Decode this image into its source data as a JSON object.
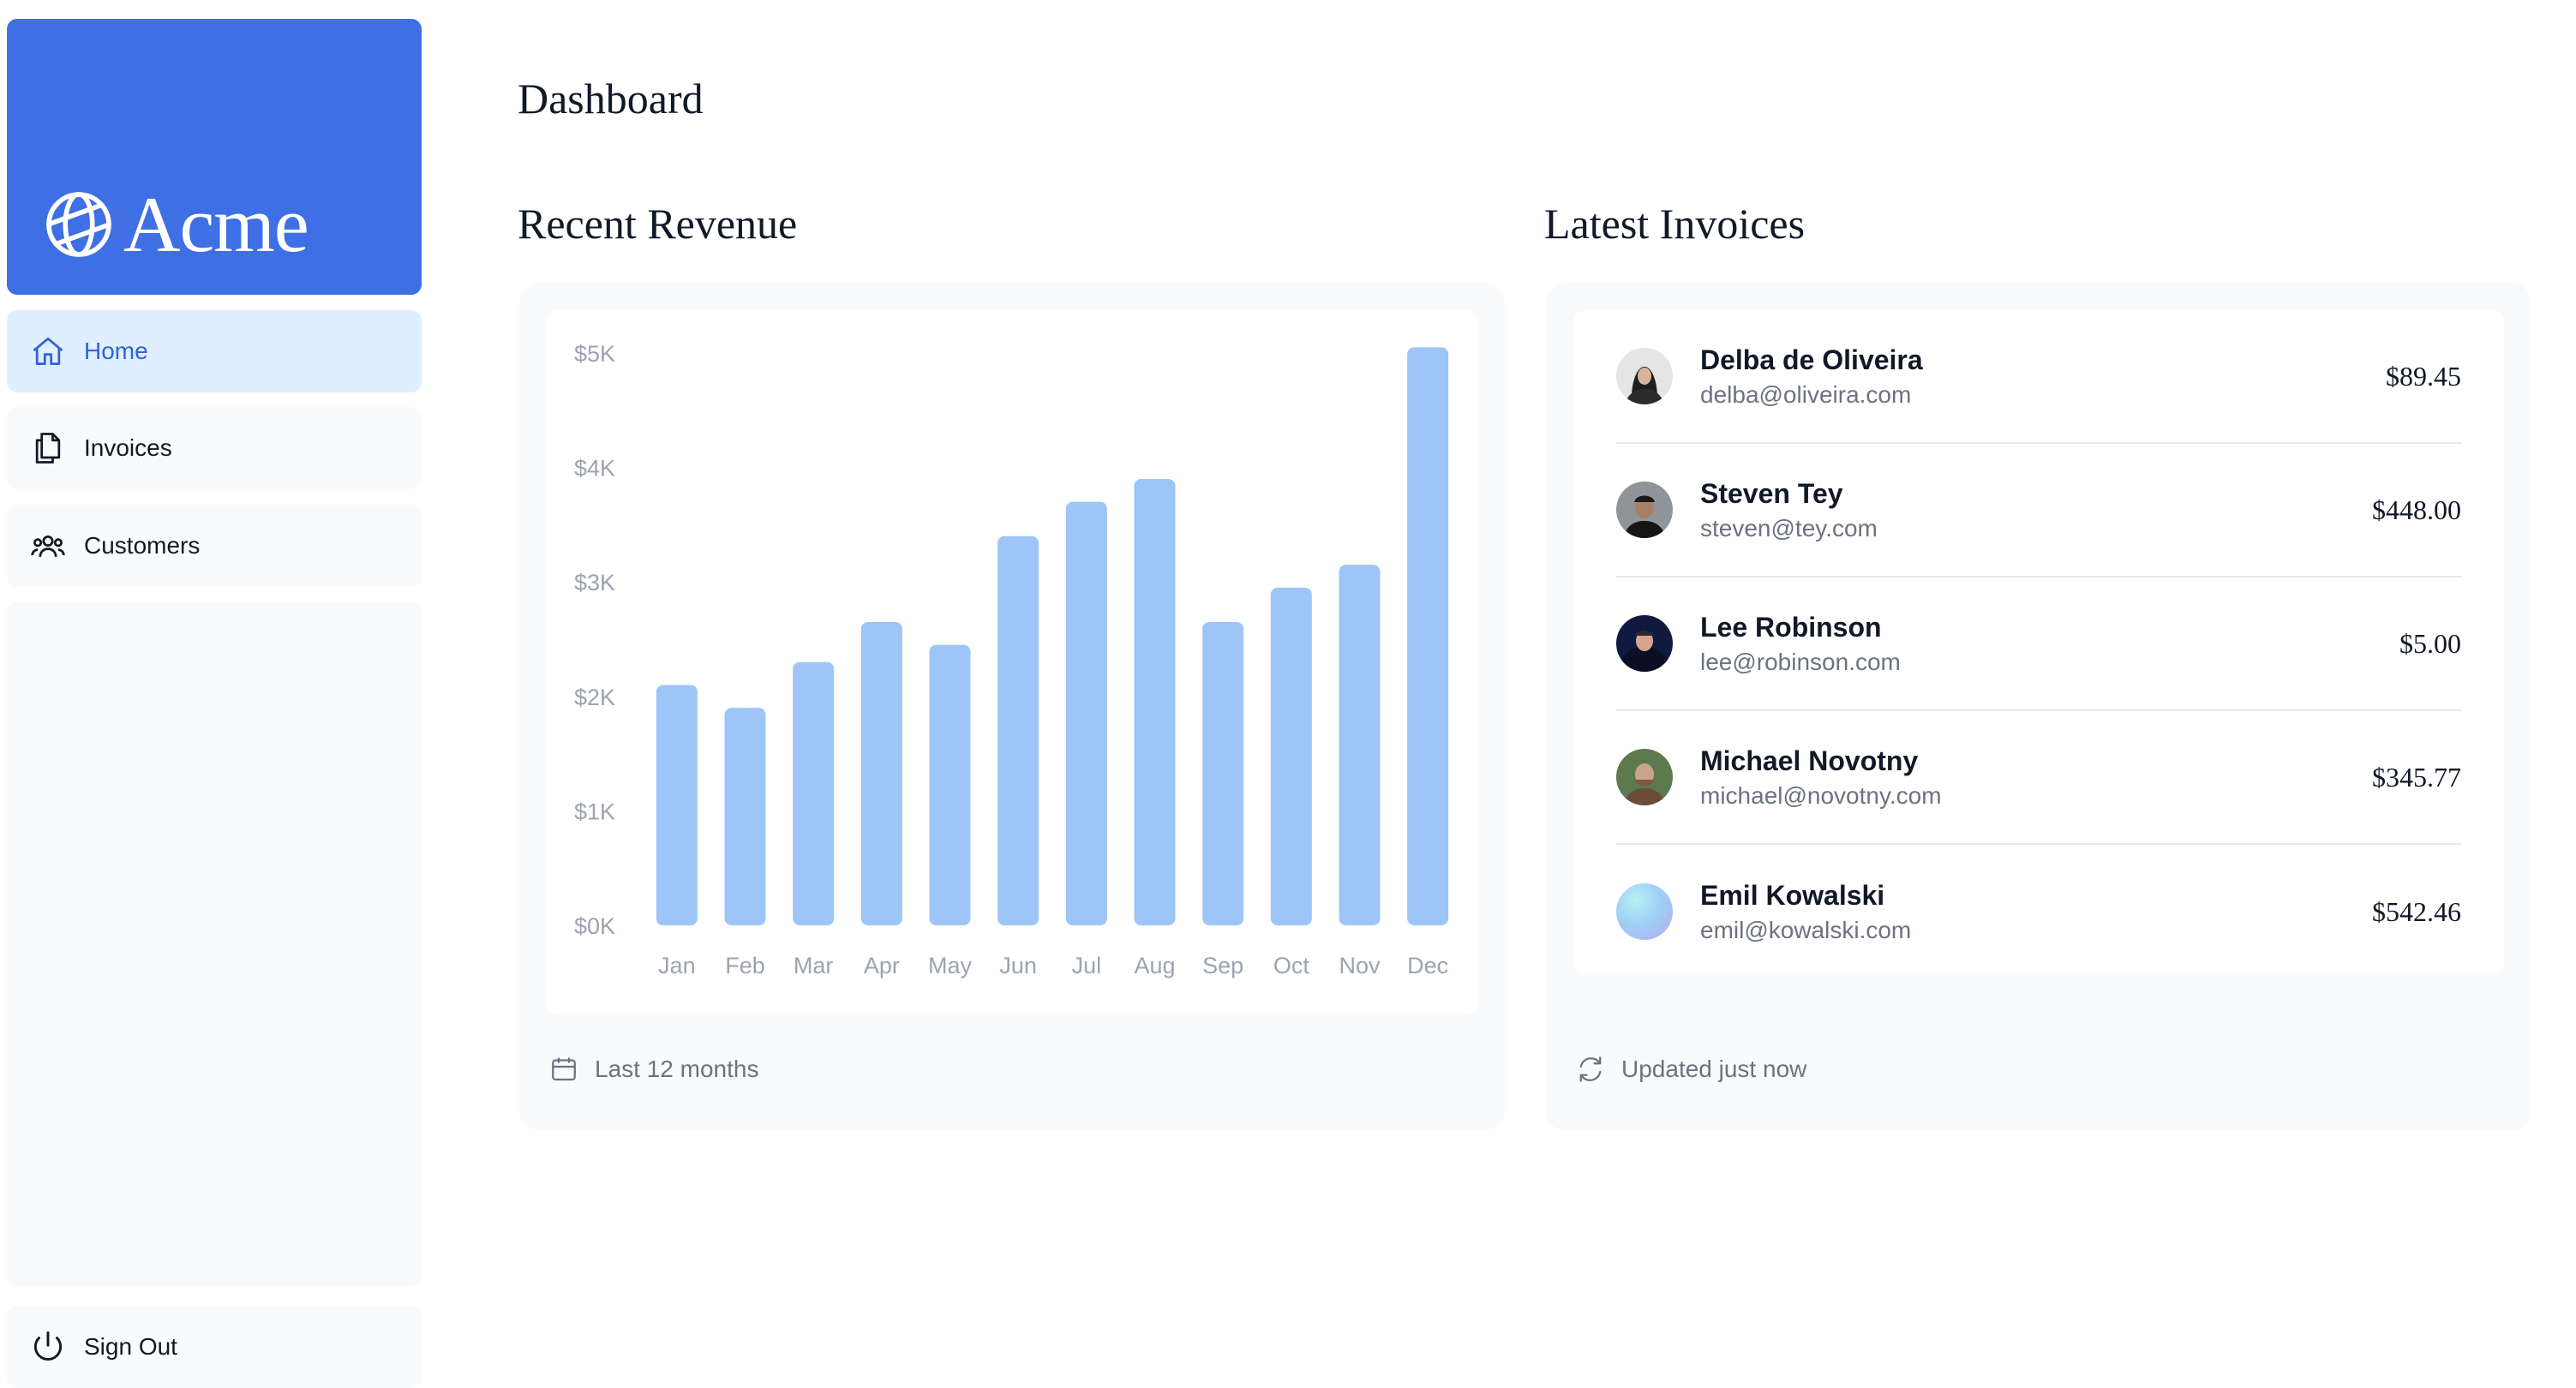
{
  "brand": {
    "name": "Acme",
    "icon": "globe-icon",
    "color": "#3f6fe4"
  },
  "sidebar": {
    "items": [
      {
        "label": "Home",
        "icon": "home-icon",
        "active": true
      },
      {
        "label": "Invoices",
        "icon": "document-duplicate-icon"
      },
      {
        "label": "Customers",
        "icon": "user-group-icon"
      }
    ],
    "sign_out": {
      "label": "Sign Out",
      "icon": "power-icon"
    }
  },
  "main": {
    "title": "Dashboard",
    "revenue": {
      "title": "Recent Revenue",
      "footer": "Last 12 months",
      "footer_icon": "calendar-icon"
    },
    "invoices": {
      "title": "Latest Invoices",
      "footer": "Updated just now",
      "footer_icon": "refresh-icon",
      "rows": [
        {
          "name": "Delba de Oliveira",
          "email": "delba@oliveira.com",
          "amount": "$89.45"
        },
        {
          "name": "Steven Tey",
          "email": "steven@tey.com",
          "amount": "$448.00"
        },
        {
          "name": "Lee Robinson",
          "email": "lee@robinson.com",
          "amount": "$5.00"
        },
        {
          "name": "Michael Novotny",
          "email": "michael@novotny.com",
          "amount": "$345.77"
        },
        {
          "name": "Emil Kowalski",
          "email": "emil@kowalski.com",
          "amount": "$542.46"
        }
      ]
    }
  },
  "chart_data": {
    "type": "bar",
    "categories": [
      "Jan",
      "Feb",
      "Mar",
      "Apr",
      "May",
      "Jun",
      "Jul",
      "Aug",
      "Sep",
      "Oct",
      "Nov",
      "Dec"
    ],
    "values": [
      2100,
      1900,
      2300,
      2650,
      2450,
      3400,
      3700,
      3900,
      2650,
      2950,
      3150,
      5050
    ],
    "yticks": [
      "$0K",
      "$1K",
      "$2K",
      "$3K",
      "$4K",
      "$5K"
    ],
    "ylim": [
      0,
      5000
    ],
    "bar_color": "#9ec5f8",
    "grid": false,
    "title": "",
    "xlabel": "",
    "ylabel": ""
  }
}
